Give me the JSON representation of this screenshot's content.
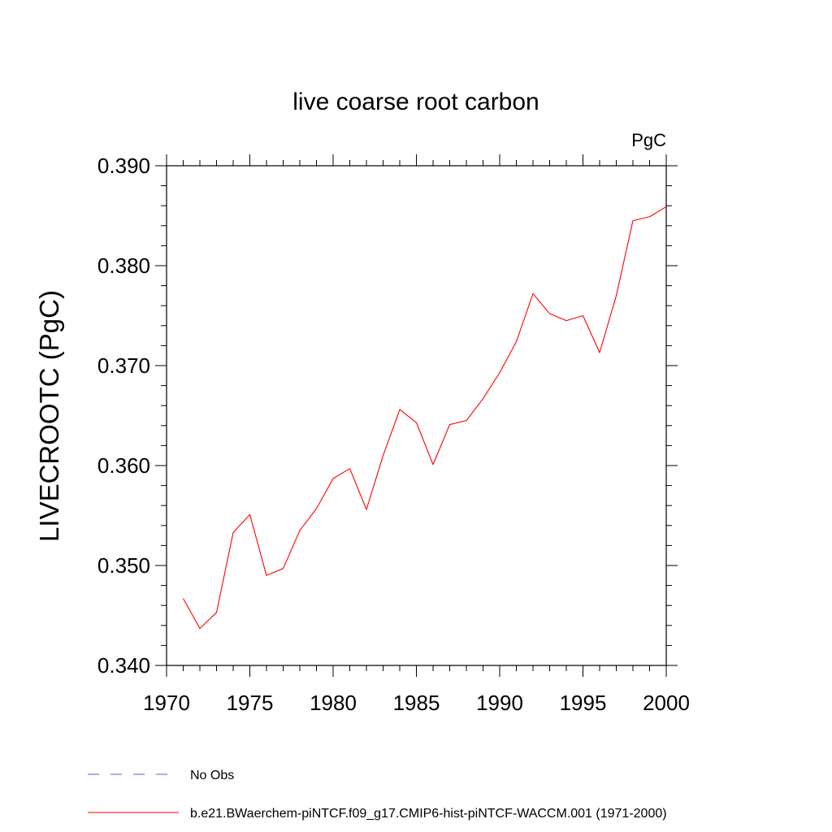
{
  "chart_data": {
    "type": "line",
    "title": "live coarse root carbon",
    "units_label": "PgC",
    "xlabel": "",
    "ylabel": "LIVECROOTC  (PgC)",
    "xlim": [
      1970,
      2000
    ],
    "ylim": [
      0.34,
      0.39
    ],
    "x_ticks": [
      1970,
      1975,
      1980,
      1985,
      1990,
      1995,
      2000
    ],
    "x_tick_labels": [
      "1970",
      "1975",
      "1980",
      "1985",
      "1990",
      "1995",
      "2000"
    ],
    "y_ticks": [
      0.34,
      0.35,
      0.36,
      0.37,
      0.38,
      0.39
    ],
    "y_tick_labels": [
      "0.340",
      "0.350",
      "0.360",
      "0.370",
      "0.380",
      "0.390"
    ],
    "x_minor_step": 1,
    "y_minor_step": 0.002,
    "grid": false,
    "legend_position": "bottom-left",
    "legend": [
      {
        "name": "No Obs",
        "color": "#6a5acd",
        "style": "dashed"
      },
      {
        "name": "b.e21.BWaerchem-piNTCF.f09_g17.CMIP6-hist-piNTCF-WACCM.001 (1971-2000)",
        "color": "#ff0000",
        "style": "solid"
      }
    ],
    "series": [
      {
        "name": "b.e21.BWaerchem-piNTCF.f09_g17.CMIP6-hist-piNTCF-WACCM.001 (1971-2000)",
        "color": "#ff0000",
        "x": [
          1971,
          1972,
          1973,
          1974,
          1975,
          1976,
          1977,
          1978,
          1979,
          1980,
          1981,
          1982,
          1983,
          1984,
          1985,
          1986,
          1987,
          1988,
          1989,
          1990,
          1991,
          1992,
          1993,
          1994,
          1995,
          1996,
          1997,
          1998,
          1999,
          2000
        ],
        "values": [
          0.3467,
          0.3437,
          0.3453,
          0.3533,
          0.3551,
          0.349,
          0.3497,
          0.3535,
          0.3557,
          0.3587,
          0.3597,
          0.3556,
          0.361,
          0.3656,
          0.3643,
          0.3601,
          0.3641,
          0.3645,
          0.3667,
          0.3693,
          0.3724,
          0.3772,
          0.3752,
          0.3745,
          0.375,
          0.3713,
          0.377,
          0.3845,
          0.3849,
          0.3859
        ]
      }
    ]
  }
}
